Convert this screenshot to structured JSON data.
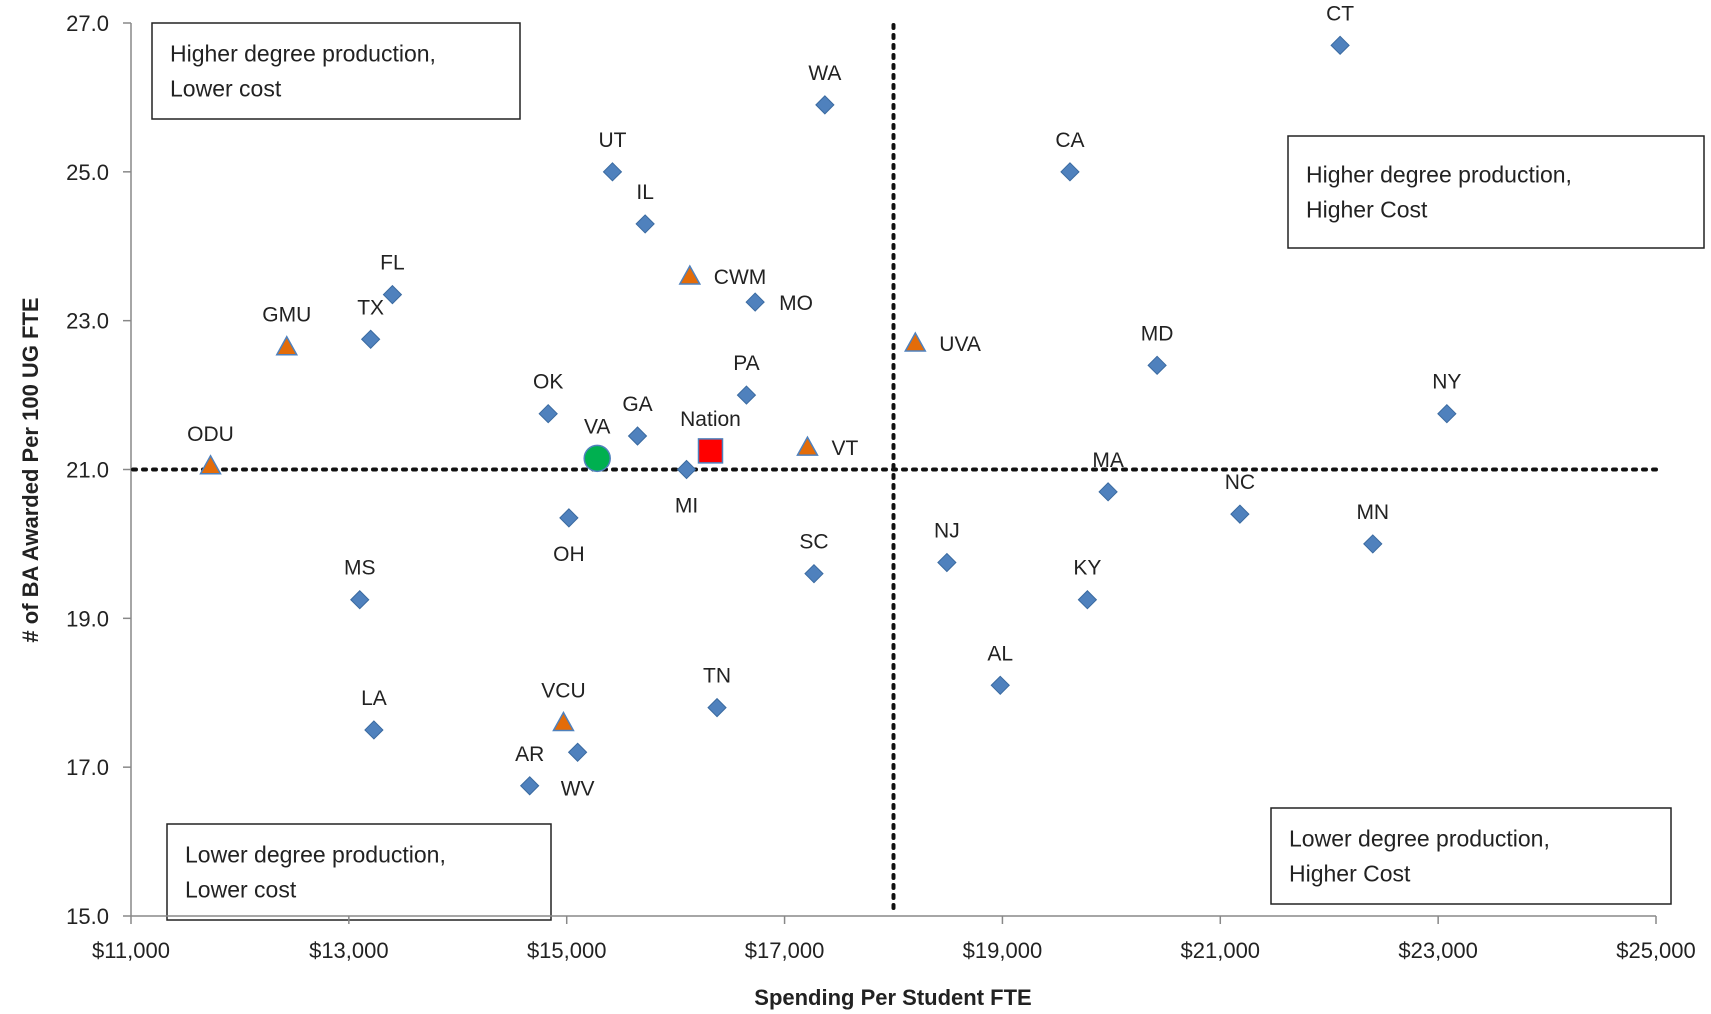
{
  "chart_data": {
    "type": "scatter",
    "title": "",
    "xlabel": "Spending Per Student FTE",
    "ylabel": "# of BA Awarded Per 100 UG FTE",
    "xlim": [
      11000,
      25000
    ],
    "ylim": [
      15,
      27
    ],
    "x_ticks": [
      11000,
      13000,
      15000,
      17000,
      19000,
      21000,
      23000,
      25000
    ],
    "x_tick_labels": [
      "$11,000",
      "$13,000",
      "$15,000",
      "$17,000",
      "$19,000",
      "$21,000",
      "$23,000",
      "$25,000"
    ],
    "y_ticks": [
      15,
      17,
      19,
      21,
      23,
      25,
      27
    ],
    "y_tick_labels": [
      "15.0",
      "17.0",
      "19.0",
      "21.0",
      "23.0",
      "25.0",
      "27.0"
    ],
    "grid": false,
    "reference_lines": {
      "x": 18000,
      "y": 21.0
    },
    "colors": {
      "state": "#4f81bd",
      "institution": "#e36c09",
      "va": "#00b050",
      "nation": "#ff0000"
    },
    "quadrant_labels": [
      {
        "line1": "Higher degree production,",
        "line2": "Lower cost",
        "position": "top-left"
      },
      {
        "line1": "Higher degree production,",
        "line2": "Higher Cost",
        "position": "top-right"
      },
      {
        "line1": "Lower degree production,",
        "line2": "Lower cost",
        "position": "bottom-left"
      },
      {
        "line1": "Lower degree production,",
        "line2": "Higher Cost",
        "position": "bottom-right"
      }
    ],
    "points": [
      {
        "label": "CT",
        "x": 22100,
        "y": 26.7,
        "kind": "state",
        "label_pos": "above"
      },
      {
        "label": "WA",
        "x": 17370,
        "y": 25.9,
        "kind": "state",
        "label_pos": "above"
      },
      {
        "label": "UT",
        "x": 15420,
        "y": 25.0,
        "kind": "state",
        "label_pos": "above"
      },
      {
        "label": "CA",
        "x": 19620,
        "y": 25.0,
        "kind": "state",
        "label_pos": "above"
      },
      {
        "label": "IL",
        "x": 15720,
        "y": 24.3,
        "kind": "state",
        "label_pos": "above"
      },
      {
        "label": "FL",
        "x": 13400,
        "y": 23.35,
        "kind": "state",
        "label_pos": "above"
      },
      {
        "label": "MO",
        "x": 16730,
        "y": 23.25,
        "kind": "state",
        "label_pos": "right"
      },
      {
        "label": "TX",
        "x": 13200,
        "y": 22.75,
        "kind": "state",
        "label_pos": "above"
      },
      {
        "label": "MD",
        "x": 20420,
        "y": 22.4,
        "kind": "state",
        "label_pos": "above"
      },
      {
        "label": "PA",
        "x": 16650,
        "y": 22.0,
        "kind": "state",
        "label_pos": "above"
      },
      {
        "label": "NY",
        "x": 23080,
        "y": 21.75,
        "kind": "state",
        "label_pos": "above"
      },
      {
        "label": "OK",
        "x": 14830,
        "y": 21.75,
        "kind": "state",
        "label_pos": "above"
      },
      {
        "label": "GA",
        "x": 15650,
        "y": 21.45,
        "kind": "state",
        "label_pos": "above"
      },
      {
        "label": "MI",
        "x": 16100,
        "y": 21.0,
        "kind": "state",
        "label_pos": "below"
      },
      {
        "label": "MA",
        "x": 19970,
        "y": 20.7,
        "kind": "state",
        "label_pos": "above"
      },
      {
        "label": "NC",
        "x": 21180,
        "y": 20.4,
        "kind": "state",
        "label_pos": "above"
      },
      {
        "label": "OH",
        "x": 15020,
        "y": 20.35,
        "kind": "state",
        "label_pos": "below"
      },
      {
        "label": "MN",
        "x": 22400,
        "y": 20.0,
        "kind": "state",
        "label_pos": "above"
      },
      {
        "label": "NJ",
        "x": 18490,
        "y": 19.75,
        "kind": "state",
        "label_pos": "above"
      },
      {
        "label": "SC",
        "x": 17270,
        "y": 19.6,
        "kind": "state",
        "label_pos": "above"
      },
      {
        "label": "MS",
        "x": 13100,
        "y": 19.25,
        "kind": "state",
        "label_pos": "above"
      },
      {
        "label": "KY",
        "x": 19780,
        "y": 19.25,
        "kind": "state",
        "label_pos": "above"
      },
      {
        "label": "AL",
        "x": 18980,
        "y": 18.1,
        "kind": "state",
        "label_pos": "above"
      },
      {
        "label": "TN",
        "x": 16380,
        "y": 17.8,
        "kind": "state",
        "label_pos": "above"
      },
      {
        "label": "LA",
        "x": 13230,
        "y": 17.5,
        "kind": "state",
        "label_pos": "above"
      },
      {
        "label": "WV",
        "x": 15100,
        "y": 17.2,
        "kind": "state",
        "label_pos": "below"
      },
      {
        "label": "AR",
        "x": 14660,
        "y": 16.75,
        "kind": "state",
        "label_pos": "above"
      },
      {
        "label": "CWM",
        "x": 16130,
        "y": 23.6,
        "kind": "institution",
        "label_pos": "right"
      },
      {
        "label": "GMU",
        "x": 12430,
        "y": 22.65,
        "kind": "institution",
        "label_pos": "above"
      },
      {
        "label": "UVA",
        "x": 18200,
        "y": 22.7,
        "kind": "institution",
        "label_pos": "right"
      },
      {
        "label": "VT",
        "x": 17210,
        "y": 21.3,
        "kind": "institution",
        "label_pos": "right"
      },
      {
        "label": "ODU",
        "x": 11730,
        "y": 21.05,
        "kind": "institution",
        "label_pos": "above"
      },
      {
        "label": "VCU",
        "x": 14970,
        "y": 17.6,
        "kind": "institution",
        "label_pos": "above"
      },
      {
        "label": "VA",
        "x": 15280,
        "y": 21.15,
        "kind": "va",
        "label_pos": "above"
      },
      {
        "label": "Nation",
        "x": 16320,
        "y": 21.25,
        "kind": "nation",
        "label_pos": "above"
      }
    ]
  }
}
